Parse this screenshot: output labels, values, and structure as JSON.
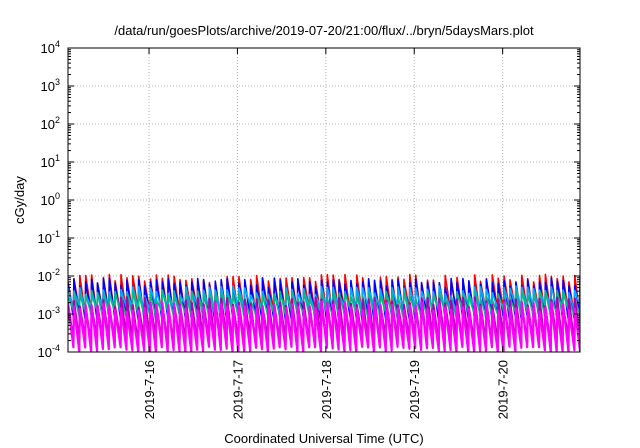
{
  "chart_data": {
    "type": "line",
    "title": "/data/run/goesPlots/archive/2019-07-20/21:00/flux/../bryn/5daysMars.plot",
    "xlabel": "Coordinated Universal Time (UTC)",
    "ylabel": "cGy/day",
    "yscale": "log",
    "ylim": [
      0.0001,
      10000
    ],
    "xlim": [
      "2019-07-15T02:00",
      "2019-07-20T21:00"
    ],
    "grid": true,
    "x_ticks": [
      "2019-7-16",
      "2019-7-17",
      "2019-7-18",
      "2019-7-19",
      "2019-7-20"
    ],
    "y_ticks": [
      {
        "base": "10",
        "exp": "-4"
      },
      {
        "base": "10",
        "exp": "-3"
      },
      {
        "base": "10",
        "exp": "-2"
      },
      {
        "base": "10",
        "exp": "-1"
      },
      {
        "base": "10",
        "exp": "0"
      },
      {
        "base": "10",
        "exp": "1"
      },
      {
        "base": "10",
        "exp": "2"
      },
      {
        "base": "10",
        "exp": "3"
      },
      {
        "base": "10",
        "exp": "4"
      }
    ],
    "sawtooth_period_hours": 1.6,
    "series": [
      {
        "color": "#ff0000",
        "peak": 0.0085,
        "trough": 0.0011
      },
      {
        "color": "#0000ff",
        "peak": 0.0068,
        "trough": 0.0008
      },
      {
        "color": "#00aaff",
        "peak": 0.0042,
        "trough": 0.0014
      },
      {
        "color": "#00c080",
        "peak": 0.0032,
        "trough": 0.001
      },
      {
        "color": "#b000b0",
        "peak": 0.0021,
        "trough": 0.00018
      },
      {
        "color": "#ff00ff",
        "peak": 0.0016,
        "trough": 0.00011
      }
    ]
  }
}
